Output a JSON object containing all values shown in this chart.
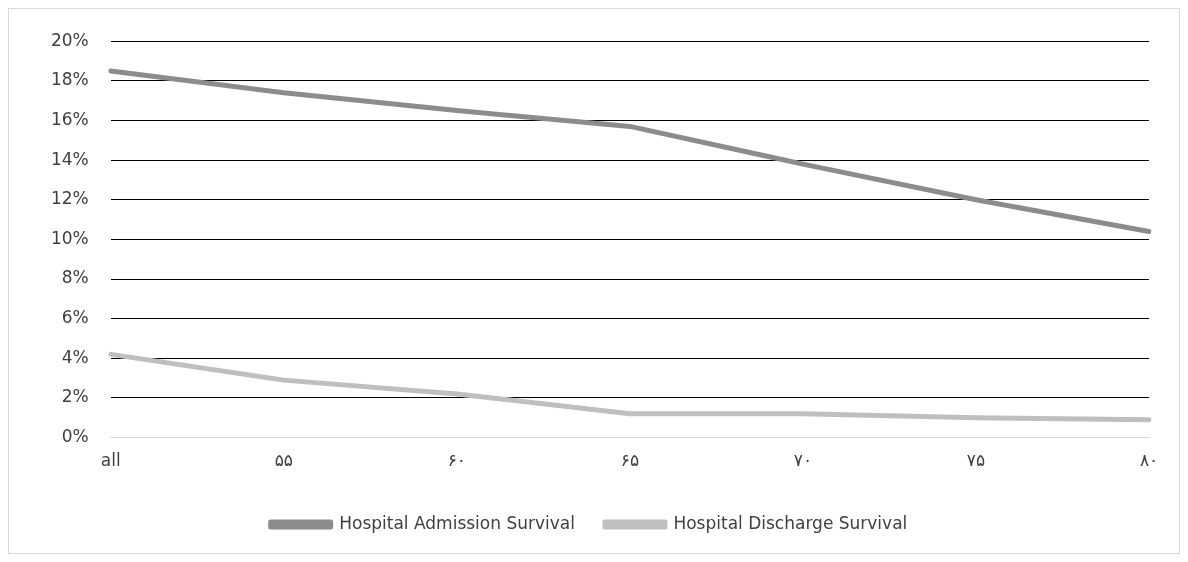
{
  "chart_data": {
    "type": "line",
    "categories": [
      "all",
      "۵۵",
      "۶۰",
      "۶۵",
      "۷۰",
      "۷۵",
      "۸۰"
    ],
    "series": [
      {
        "name": "Hospital Admission Survival",
        "color": "#8c8c8c",
        "values": [
          18.5,
          17.4,
          16.5,
          15.7,
          13.8,
          12.0,
          10.4
        ]
      },
      {
        "name": "Hospital Discharge Survival",
        "color": "#bfbfbf",
        "values": [
          4.2,
          2.9,
          2.2,
          1.2,
          1.2,
          1.0,
          0.9
        ]
      }
    ],
    "ylim": [
      0,
      20
    ],
    "yticks": [
      {
        "value": 0,
        "label": "0%"
      },
      {
        "value": 2,
        "label": "2%"
      },
      {
        "value": 4,
        "label": "4%"
      },
      {
        "value": 6,
        "label": "6%"
      },
      {
        "value": 8,
        "label": "8%"
      },
      {
        "value": 10,
        "label": "10%"
      },
      {
        "value": 12,
        "label": "12%"
      },
      {
        "value": 14,
        "label": "14%"
      },
      {
        "value": 16,
        "label": "16%"
      },
      {
        "value": 18,
        "label": "18%"
      },
      {
        "value": 20,
        "label": "20%"
      }
    ],
    "grid": "y",
    "legend": "bottom",
    "marker": "none",
    "line_style": "solid"
  }
}
